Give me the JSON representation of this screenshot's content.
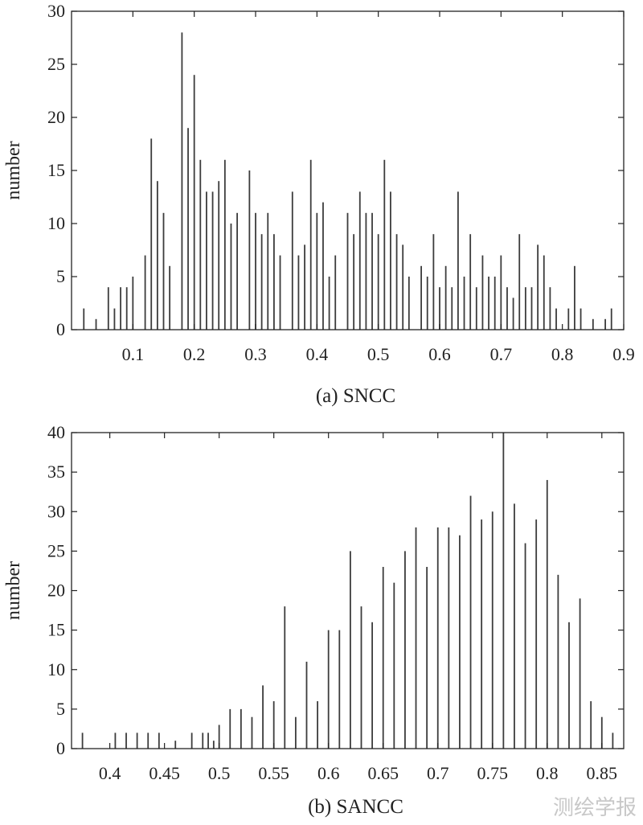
{
  "watermark": "测绘学报",
  "chart_data": [
    {
      "type": "bar",
      "caption": "(a) SNCC",
      "ylabel": "number",
      "xlim": [
        0.0,
        0.9
      ],
      "ylim": [
        0,
        30
      ],
      "xticks": [
        0.1,
        0.2,
        0.3,
        0.4,
        0.5,
        0.6,
        0.7,
        0.8,
        0.9
      ],
      "xtick_labels": [
        "0.1",
        "0.2",
        "0.3",
        "0.4",
        "0.5",
        "0.6",
        "0.7",
        "0.8",
        "0.9"
      ],
      "yticks": [
        0,
        5,
        10,
        15,
        20,
        25,
        30
      ],
      "ytick_labels": [
        "0",
        "5",
        "10",
        "15",
        "20",
        "25",
        "30"
      ],
      "grid": false,
      "color": "#3c3c3c",
      "x": [
        0.02,
        0.04,
        0.06,
        0.07,
        0.08,
        0.09,
        0.1,
        0.12,
        0.13,
        0.14,
        0.15,
        0.16,
        0.18,
        0.19,
        0.2,
        0.21,
        0.22,
        0.23,
        0.24,
        0.25,
        0.26,
        0.27,
        0.29,
        0.3,
        0.31,
        0.32,
        0.33,
        0.34,
        0.36,
        0.37,
        0.38,
        0.39,
        0.4,
        0.41,
        0.42,
        0.43,
        0.45,
        0.46,
        0.47,
        0.48,
        0.49,
        0.5,
        0.51,
        0.52,
        0.53,
        0.54,
        0.55,
        0.57,
        0.58,
        0.59,
        0.6,
        0.61,
        0.62,
        0.63,
        0.64,
        0.65,
        0.66,
        0.67,
        0.68,
        0.69,
        0.7,
        0.71,
        0.72,
        0.73,
        0.74,
        0.75,
        0.76,
        0.77,
        0.78,
        0.79,
        0.81,
        0.82,
        0.83,
        0.85,
        0.87,
        0.88
      ],
      "values": [
        2,
        1,
        4,
        2,
        4,
        4,
        5,
        7,
        18,
        14,
        11,
        6,
        28,
        19,
        24,
        16,
        13,
        13,
        14,
        16,
        10,
        11,
        15,
        11,
        9,
        11,
        9,
        7,
        13,
        7,
        8,
        16,
        11,
        12,
        5,
        7,
        11,
        9,
        13,
        11,
        11,
        9,
        16,
        13,
        9,
        8,
        5,
        6,
        5,
        9,
        4,
        6,
        4,
        13,
        5,
        9,
        4,
        7,
        5,
        5,
        7,
        4,
        3,
        9,
        4,
        4,
        8,
        7,
        4,
        2,
        2,
        6,
        2,
        1,
        1,
        2
      ]
    },
    {
      "type": "bar",
      "caption": "(b) SANCC",
      "ylabel": "number",
      "xlim": [
        0.365,
        0.87
      ],
      "ylim": [
        0,
        40
      ],
      "xticks": [
        0.4,
        0.45,
        0.5,
        0.55,
        0.6,
        0.65,
        0.7,
        0.75,
        0.8,
        0.85
      ],
      "xtick_labels": [
        "0.4",
        "0.45",
        "0.5",
        "0.55",
        "0.6",
        "0.65",
        "0.7",
        "0.75",
        "0.8",
        "0.85"
      ],
      "yticks": [
        0,
        5,
        10,
        15,
        20,
        25,
        30,
        35,
        40
      ],
      "ytick_labels": [
        "0",
        "5",
        "10",
        "15",
        "20",
        "25",
        "30",
        "35",
        "40"
      ],
      "grid": false,
      "color": "#3c3c3c",
      "x": [
        0.375,
        0.405,
        0.415,
        0.425,
        0.435,
        0.445,
        0.46,
        0.475,
        0.485,
        0.49,
        0.495,
        0.5,
        0.51,
        0.52,
        0.53,
        0.54,
        0.55,
        0.56,
        0.57,
        0.58,
        0.59,
        0.6,
        0.61,
        0.62,
        0.63,
        0.64,
        0.65,
        0.66,
        0.67,
        0.68,
        0.69,
        0.7,
        0.71,
        0.72,
        0.73,
        0.74,
        0.75,
        0.76,
        0.77,
        0.78,
        0.79,
        0.8,
        0.81,
        0.82,
        0.83,
        0.84,
        0.85,
        0.86
      ],
      "values": [
        2,
        2,
        2,
        2,
        2,
        2,
        1,
        2,
        2,
        2,
        1,
        3,
        5,
        5,
        4,
        8,
        6,
        18,
        4,
        11,
        6,
        15,
        15,
        25,
        18,
        16,
        23,
        21,
        25,
        28,
        23,
        28,
        28,
        27,
        32,
        29,
        30,
        40,
        31,
        26,
        29,
        34,
        22,
        16,
        19,
        6,
        4,
        2
      ]
    }
  ]
}
